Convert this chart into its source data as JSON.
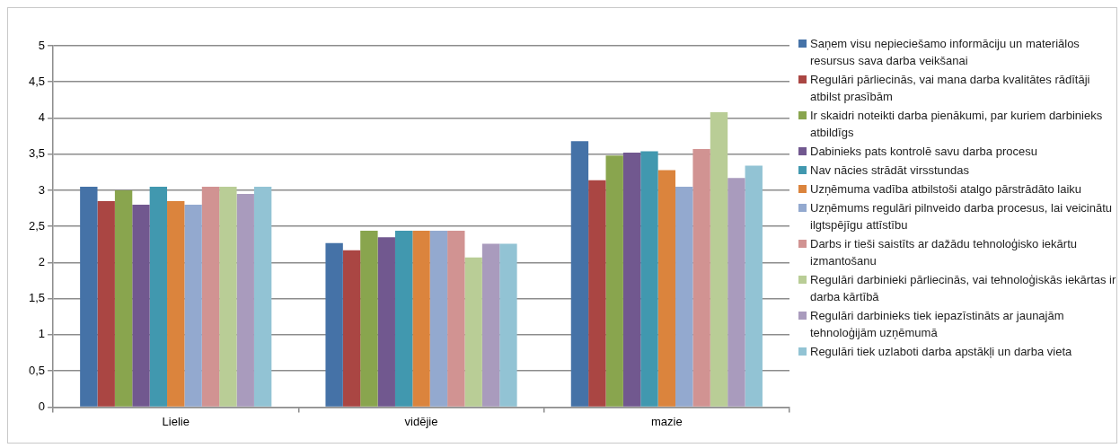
{
  "chart_data": {
    "type": "bar",
    "categories": [
      "Lielie",
      "vidējie",
      "mazie"
    ],
    "series": [
      {
        "name": "Saņem visu nepieciešamo informāciju un materiālos resursus sava darba veikšanai",
        "color": "#4572a7",
        "values": [
          3.05,
          2.27,
          3.68
        ]
      },
      {
        "name": "Regulāri pārliecinās, vai mana darba kvalitātes rādītāji atbilst prasībām",
        "color": "#aa4643",
        "values": [
          2.85,
          2.17,
          3.14
        ]
      },
      {
        "name": "Ir skaidri noteikti darba pienākumi, par kuriem darbinieks atbildīgs",
        "color": "#89a54e",
        "values": [
          3.0,
          2.44,
          3.48
        ]
      },
      {
        "name": "Dabinieks pats kontrolē savu darba procesu",
        "color": "#71588f",
        "values": [
          2.8,
          2.35,
          3.52
        ]
      },
      {
        "name": "Nav nācies strādāt virsstundas",
        "color": "#4198af",
        "values": [
          3.05,
          2.44,
          3.54
        ]
      },
      {
        "name": "Uzņēmuma vadība atbilstoši atalgo pārstrādāto laiku",
        "color": "#db843d",
        "values": [
          2.85,
          2.44,
          3.28
        ]
      },
      {
        "name": "Uzņēmums regulāri pilnveido darba procesus, lai veicinātu ilgtspējīgu attīstību",
        "color": "#93a9cf",
        "values": [
          2.8,
          2.44,
          3.05
        ]
      },
      {
        "name": "Darbs ir tieši saistīts ar dažādu tehnoloģisko iekārtu izmantošanu",
        "color": "#d19392",
        "values": [
          3.05,
          2.44,
          3.57
        ]
      },
      {
        "name": "Regulāri darbinieki pārliecinās, vai tehnoloģiskās iekārtas ir darba kārtībā",
        "color": "#b9cd96",
        "values": [
          3.05,
          2.07,
          4.08
        ]
      },
      {
        "name": "Regulāri darbinieks tiek iepazīstināts ar jaunajām tehnoloģijām uzņēmumā",
        "color": "#a99bbd",
        "values": [
          2.95,
          2.26,
          3.17
        ]
      },
      {
        "name": "Regulāri tiek uzlaboti darba apstākļi un darba vieta",
        "color": "#92c3d4",
        "values": [
          3.05,
          2.26,
          3.34
        ]
      }
    ],
    "ylim": [
      0,
      5
    ],
    "yticks": [
      0,
      {
        "value": 0.5,
        "label": "0,5"
      },
      1,
      {
        "value": 1.5,
        "label": "1,5"
      },
      2,
      {
        "value": 2.5,
        "label": "2,5"
      },
      3,
      {
        "value": 3.5,
        "label": "3,5"
      },
      4,
      {
        "value": 4.5,
        "label": "4,5"
      },
      5
    ],
    "grid": "y",
    "legend": "right"
  }
}
